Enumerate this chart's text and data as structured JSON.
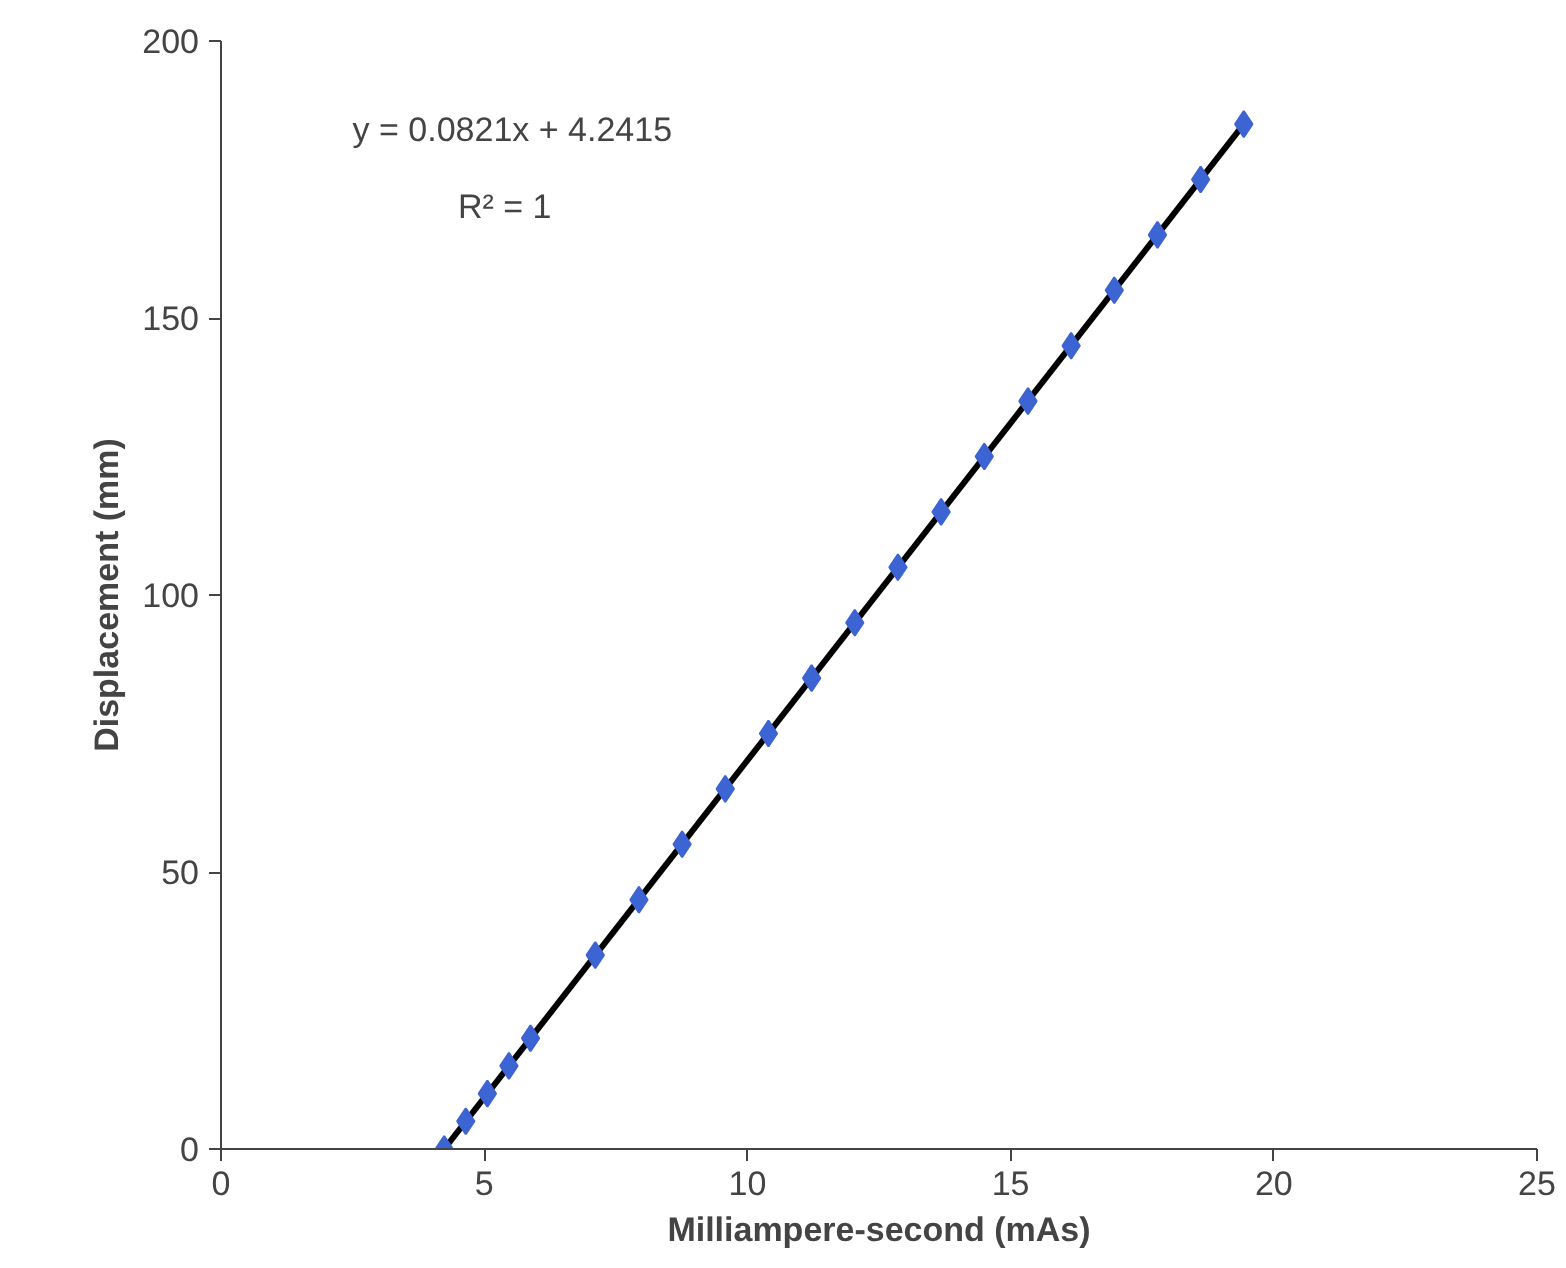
{
  "chart_data": {
    "type": "scatter",
    "xlabel": "Milliampere-second (mAs)",
    "ylabel": "Displacement (mm)",
    "xlim": [
      0,
      25
    ],
    "xticks": [
      0,
      5,
      10,
      15,
      20,
      25
    ],
    "ylim": [
      0,
      200
    ],
    "yticks": [
      0,
      50,
      100,
      150,
      200
    ],
    "grid": false,
    "annotations": [
      "y = 0.0821x + 4.2415",
      "R² = 1"
    ],
    "series": [
      {
        "marker": "diamond",
        "color": "#3c64d2",
        "x": [
          4.24,
          4.65,
          5.06,
          5.47,
          5.88,
          7.11,
          7.94,
          8.76,
          9.58,
          10.4,
          11.22,
          12.04,
          12.86,
          13.68,
          14.5,
          15.33,
          16.15,
          16.97,
          17.79,
          18.61,
          19.43
        ],
        "values": [
          0,
          5,
          10,
          15,
          20,
          35,
          45,
          55,
          65,
          75,
          85,
          95,
          105,
          115,
          125,
          135,
          145,
          155,
          165,
          175,
          185
        ]
      },
      {
        "type": "line",
        "marker": "none",
        "color": "#000000",
        "line_style": "solid",
        "x": [
          4.24,
          19.43
        ],
        "values": [
          0,
          185
        ]
      }
    ]
  }
}
